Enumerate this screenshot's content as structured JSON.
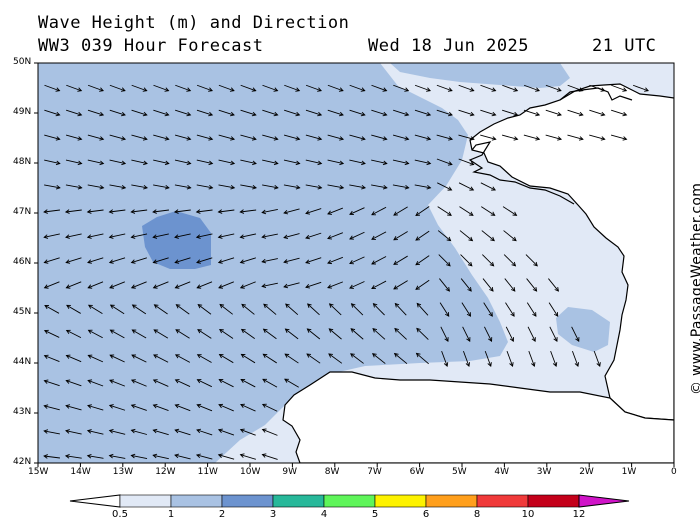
{
  "title": {
    "line1": "Wave Height (m) and Direction",
    "model": "WW3 039 Hour Forecast",
    "date": "Wed 18 Jun 2025",
    "time": "21 UTC"
  },
  "credit": "© www.PassageWeather.com",
  "map": {
    "lon_range": [
      -15,
      0
    ],
    "lat_range": [
      42,
      50
    ],
    "lat_labels": [
      "50N",
      "49N",
      "48N",
      "47N",
      "46N",
      "45N",
      "44N",
      "43N",
      "42N"
    ],
    "lon_labels": [
      "15W",
      "14W",
      "13W",
      "12W",
      "11W",
      "10W",
      "9W",
      "8W",
      "7W",
      "6W",
      "5W",
      "4W",
      "3W",
      "2W",
      "1W",
      "0"
    ]
  },
  "legend": {
    "labels": [
      "0.5",
      "1",
      "2",
      "3",
      "4",
      "5",
      "6",
      "8",
      "10",
      "12"
    ],
    "colors": [
      "#e1e9f6",
      "#a9c2e3",
      "#6c93cf",
      "#27b89a",
      "#5ff55a",
      "#fdf200",
      "#ff9f1c",
      "#f03a3a",
      "#c4001a",
      "#d014c8"
    ]
  },
  "colors": {
    "wave_light": "#e1e9f6",
    "wave_medium": "#a9c2e3",
    "wave_dark": "#6c93cf",
    "land": "#ffffff",
    "coast": "#000000"
  }
}
